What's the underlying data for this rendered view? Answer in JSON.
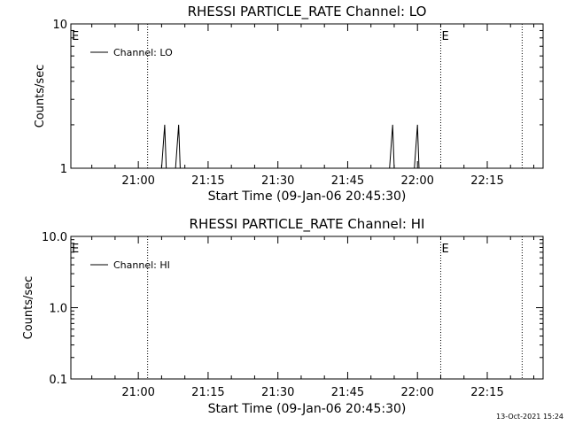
{
  "footer_timestamp": "13-Oct-2021 15:24",
  "chart_data": [
    {
      "type": "line",
      "title": "RHESSI PARTICLE_RATE Channel: LO",
      "xlabel": "Start Time (09-Jan-06 20:45:30)",
      "ylabel": "Counts/sec",
      "yscale": "log",
      "xlim": [
        "20:45:30",
        "22:27:00"
      ],
      "ylim": [
        1,
        10
      ],
      "x_ticks": [
        "21:00",
        "21:15",
        "21:30",
        "21:45",
        "22:00",
        "22:15"
      ],
      "y_ticks": [
        "1",
        "10"
      ],
      "legend": {
        "label": "Channel: LO",
        "position": "top-left"
      },
      "vlines": [
        "21:02:00",
        "22:05:00",
        "22:22:30"
      ],
      "markers": [
        {
          "text": "E",
          "time": "20:45:30"
        },
        {
          "text": "E",
          "time": "22:05:00"
        }
      ],
      "series": [
        {
          "name": "Channel: LO",
          "x": [
            "20:45:30",
            "21:05:00",
            "21:05:40",
            "21:06:00",
            "21:08:00",
            "21:08:40",
            "21:09:00",
            "21:54:00",
            "21:54:40",
            "21:55:00",
            "21:59:20",
            "22:00:00",
            "22:00:20",
            "22:27:00"
          ],
          "values": [
            1,
            1,
            2,
            1,
            1,
            2,
            1,
            1,
            2,
            1,
            1,
            2,
            1,
            1
          ]
        }
      ]
    },
    {
      "type": "line",
      "title": "RHESSI PARTICLE_RATE Channel: HI",
      "xlabel": "Start Time (09-Jan-06 20:45:30)",
      "ylabel": "Counts/sec",
      "yscale": "log",
      "xlim": [
        "20:45:30",
        "22:27:00"
      ],
      "ylim": [
        0.1,
        10
      ],
      "x_ticks": [
        "21:00",
        "21:15",
        "21:30",
        "21:45",
        "22:00",
        "22:15"
      ],
      "y_ticks": [
        "0.1",
        "1.0",
        "10.0"
      ],
      "legend": {
        "label": "Channel: HI",
        "position": "top-left"
      },
      "vlines": [
        "21:02:00",
        "22:05:00",
        "22:22:30"
      ],
      "markers": [
        {
          "text": "E",
          "time": "20:45:30"
        },
        {
          "text": "E",
          "time": "22:05:00"
        }
      ],
      "series": [
        {
          "name": "Channel: HI",
          "x": [],
          "values": []
        }
      ]
    }
  ]
}
